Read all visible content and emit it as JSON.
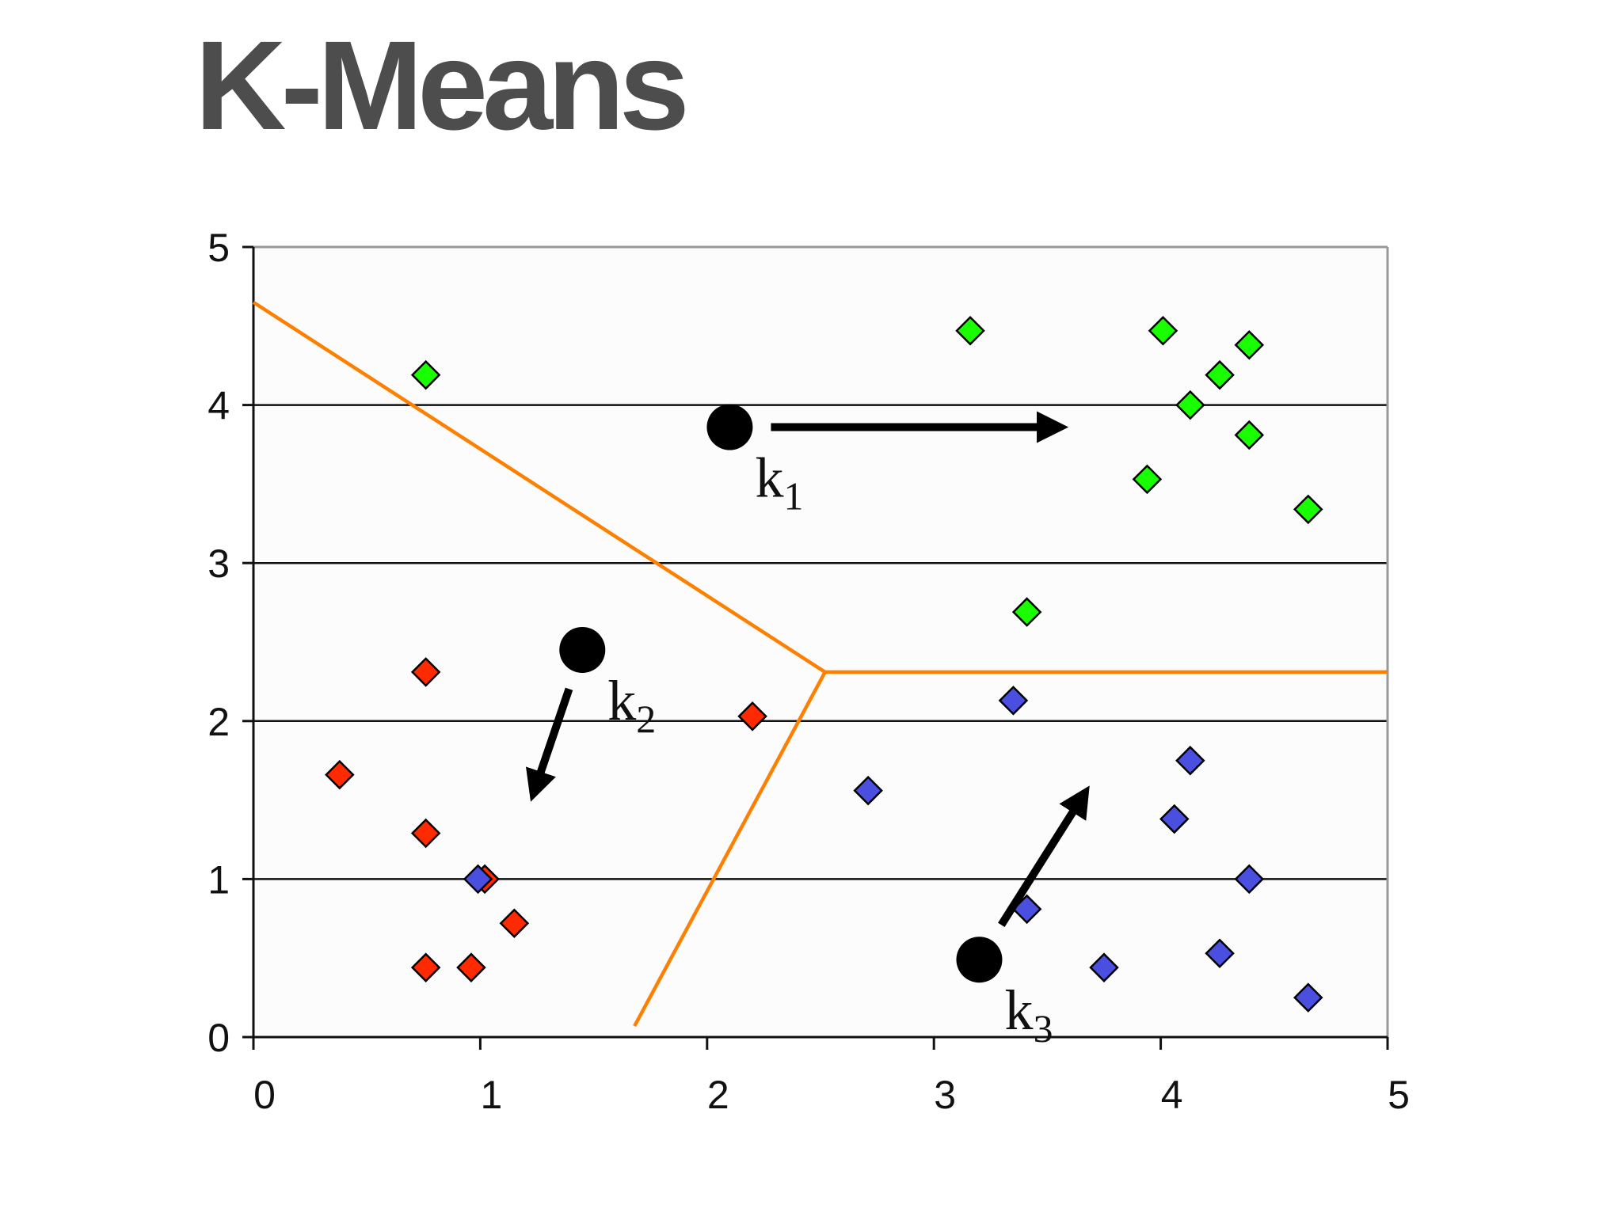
{
  "slide": {
    "title": "K-Means"
  },
  "chart_data": {
    "type": "scatter",
    "title": "",
    "xlabel": "",
    "ylabel": "",
    "xlim": [
      0,
      5
    ],
    "ylim": [
      0,
      5
    ],
    "x_ticks": [
      "0",
      "1",
      "2",
      "3",
      "4",
      "5"
    ],
    "y_ticks": [
      "0",
      "1",
      "2",
      "3",
      "4",
      "5"
    ],
    "grid": "horizontal",
    "marker": "diamond",
    "colors": {
      "cluster1": "#1aff00",
      "cluster2": "#ff2a00",
      "cluster3": "#4a4fe0",
      "boundary": "#ff8000",
      "centroid": "#000000"
    },
    "series": [
      {
        "color_key": "cluster1",
        "points": [
          [
            0.76,
            4.19
          ],
          [
            3.16,
            4.47
          ],
          [
            4.01,
            4.47
          ],
          [
            4.39,
            4.38
          ],
          [
            4.26,
            4.19
          ],
          [
            4.13,
            4.0
          ],
          [
            4.39,
            3.81
          ],
          [
            3.94,
            3.53
          ],
          [
            4.65,
            3.34
          ],
          [
            3.41,
            2.69
          ]
        ]
      },
      {
        "color_key": "cluster2",
        "points": [
          [
            0.76,
            2.31
          ],
          [
            2.2,
            2.03
          ],
          [
            0.38,
            1.66
          ],
          [
            0.76,
            1.29
          ],
          [
            1.02,
            1.0
          ],
          [
            1.15,
            0.72
          ],
          [
            0.76,
            0.44
          ],
          [
            0.96,
            0.44
          ]
        ]
      },
      {
        "color_key": "cluster3",
        "points": [
          [
            3.35,
            2.13
          ],
          [
            4.13,
            1.75
          ],
          [
            2.71,
            1.56
          ],
          [
            4.06,
            1.38
          ],
          [
            0.99,
            1.0
          ],
          [
            4.39,
            1.0
          ],
          [
            3.41,
            0.81
          ],
          [
            4.26,
            0.53
          ],
          [
            3.75,
            0.44
          ],
          [
            4.65,
            0.25
          ]
        ]
      }
    ],
    "boundaries": [
      [
        [
          0.0,
          4.65
        ],
        [
          2.52,
          2.31
        ]
      ],
      [
        [
          2.52,
          2.31
        ],
        [
          5.0,
          2.31
        ]
      ],
      [
        [
          2.52,
          2.31
        ],
        [
          1.68,
          0.07
        ]
      ]
    ],
    "centroids": [
      {
        "label": "k",
        "sub": "1",
        "x": 2.1,
        "y": 3.86,
        "move_to": [
          3.6,
          3.86
        ]
      },
      {
        "label": "k",
        "sub": "2",
        "x": 1.45,
        "y": 2.45,
        "move_to": [
          1.22,
          1.48
        ]
      },
      {
        "label": "k",
        "sub": "3",
        "x": 3.2,
        "y": 0.49,
        "move_to": [
          3.69,
          1.6
        ]
      }
    ]
  }
}
